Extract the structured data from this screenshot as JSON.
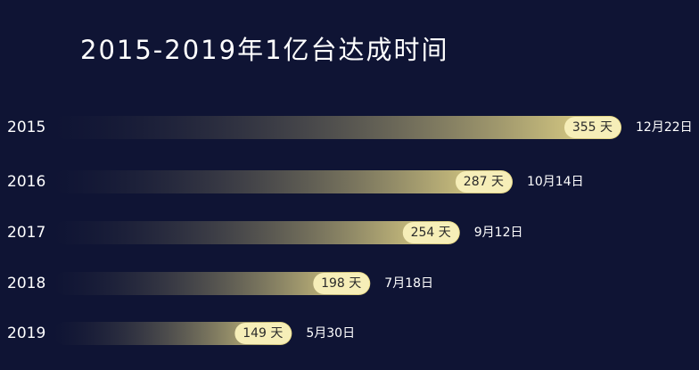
{
  "chart_data": {
    "type": "bar",
    "orientation": "horizontal",
    "title": "2015-2019年1亿台达成时间",
    "categories": [
      "2015",
      "2016",
      "2017",
      "2018",
      "2019"
    ],
    "values": [
      355,
      287,
      254,
      198,
      149
    ],
    "value_labels": [
      "355 天",
      "287 天",
      "254 天",
      "198 天",
      "149 天"
    ],
    "annotations": [
      "12月22日",
      "10月14日",
      "9月12日",
      "7月18日",
      "5月30日"
    ],
    "color": "#efe08c"
  }
}
